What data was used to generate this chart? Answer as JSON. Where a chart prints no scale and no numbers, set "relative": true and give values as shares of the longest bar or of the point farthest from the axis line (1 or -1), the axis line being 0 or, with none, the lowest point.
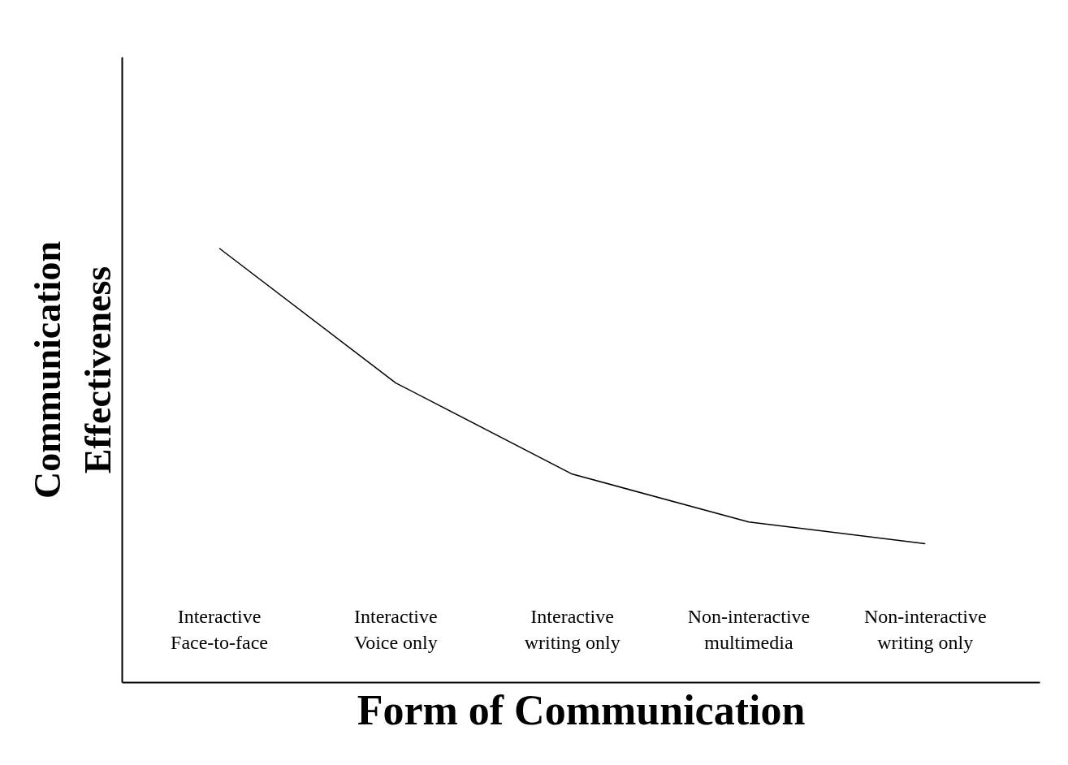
{
  "chart_data": {
    "type": "line",
    "relative": true,
    "xlabel": "Form of Communication",
    "ylabel": "Communication\nEffectiveness",
    "categories": [
      "Interactive\nFace-to-face",
      "Interactive\nVoice only",
      "Interactive\nwriting only",
      "Non-interactive\nmultimedia",
      "Non-interactive\nwriting only"
    ],
    "series": [
      {
        "color": "#000000",
        "values": [
          1,
          0.69,
          0.48,
          0.37,
          0.32
        ]
      }
    ],
    "marker": "none",
    "line_style": "solid"
  }
}
